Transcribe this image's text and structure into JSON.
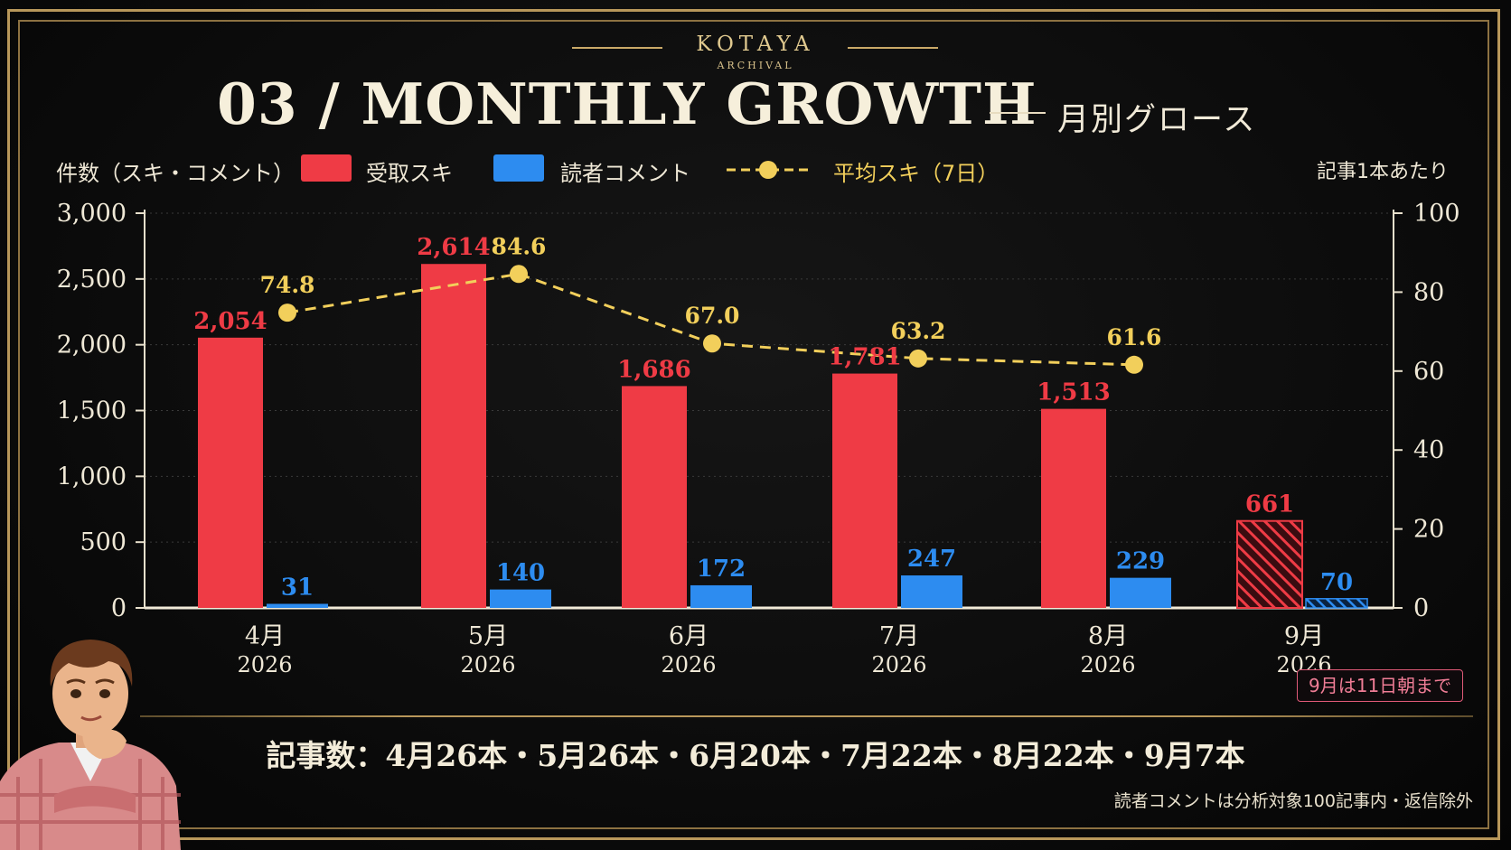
{
  "brand": {
    "name": "KOTAYA",
    "sub": "ARCHIVAL"
  },
  "title": "03 / MONTHLY GROWTH",
  "title_jp": "月別グロース",
  "legend": {
    "left_axis_title": "件数（スキ・コメント）",
    "likes_label": "受取スキ",
    "comments_label": "読者コメント",
    "avg_label": "平均スキ（7日）",
    "right_axis_title": "記事1本あたり"
  },
  "colors": {
    "likes": "#ef3b45",
    "comments": "#2d8cf0",
    "avg": "#f2cf5b",
    "gold": "#b8975a"
  },
  "chart_data": {
    "type": "bar",
    "categories": [
      "4月",
      "5月",
      "6月",
      "7月",
      "8月",
      "9月"
    ],
    "category_years": [
      "2026",
      "2026",
      "2026",
      "2026",
      "2026",
      "2026"
    ],
    "series": [
      {
        "name": "受取スキ",
        "axis": "left",
        "type": "bar",
        "values": [
          2054,
          2614,
          1686,
          1781,
          1513,
          661
        ],
        "labels": [
          "2,054",
          "2,614",
          "1,686",
          "1,781",
          "1,513",
          "661"
        ]
      },
      {
        "name": "読者コメント",
        "axis": "left",
        "type": "bar",
        "values": [
          31,
          140,
          172,
          247,
          229,
          70
        ],
        "labels": [
          "31",
          "140",
          "172",
          "247",
          "229",
          "70"
        ]
      },
      {
        "name": "平均スキ（7日）",
        "axis": "right",
        "type": "line",
        "style": "dashed",
        "values": [
          74.8,
          84.6,
          67.0,
          63.2,
          61.6,
          null
        ],
        "labels": [
          "74.8",
          "84.6",
          "67.0",
          "63.2",
          "61.6",
          ""
        ]
      }
    ],
    "partial_category": "9月",
    "ylim_left": [
      0,
      3000
    ],
    "yticks_left": [
      0,
      500,
      1000,
      1500,
      2000,
      2500,
      3000
    ],
    "ytick_labels_left": [
      "0",
      "500",
      "1,000",
      "1,500",
      "2,000",
      "2,500",
      "3,000"
    ],
    "ylim_right": [
      0,
      100
    ],
    "yticks_right": [
      0,
      20,
      40,
      60,
      80,
      100
    ],
    "ytick_labels_right": [
      "0",
      "20",
      "40",
      "60",
      "80",
      "100"
    ],
    "ylabel_left": "件数（スキ・コメント）",
    "ylabel_right": "記事1本あたり",
    "grid": true
  },
  "september_note": "9月は11日朝まで",
  "article_counts": "記事数：4月26本・5月26本・6月20本・7月22本・8月22本・9月7本",
  "footnote": "読者コメントは分析対象100記事内・返信除外"
}
